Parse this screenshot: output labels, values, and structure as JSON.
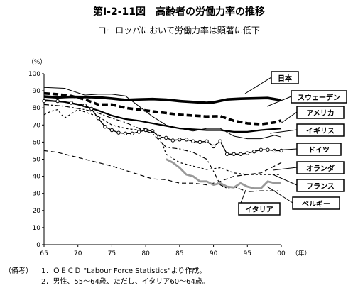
{
  "title": "第Ⅰ-2-11図　高齢者の労働力率の推移",
  "subtitle": "ヨーロッパにおいて労働力率は顕著に低下",
  "notes": {
    "head": "（備考）",
    "line1": "1．ＯＥＣＤ \"Labour Force Statistics\"より作成。",
    "line2": "2．男性、55～64歳、ただし、イタリア60～64歳。"
  },
  "chart_data": {
    "type": "line",
    "ylabel": "（%）",
    "xlabel": "（年）",
    "xlim": [
      1965,
      2000
    ],
    "ylim": [
      0,
      100
    ],
    "x_ticks": [
      "65",
      "70",
      "75",
      "80",
      "85",
      "90",
      "95",
      "00"
    ],
    "y_ticks": [
      "0",
      "10",
      "20",
      "30",
      "40",
      "50",
      "60",
      "70",
      "80",
      "90",
      "100"
    ],
    "grid": false,
    "series": [
      {
        "name": "日本",
        "color": "#000000",
        "style": "thick",
        "points": [
          [
            1965,
            86.7
          ],
          [
            1967,
            86.2
          ],
          [
            1969,
            86.5
          ],
          [
            1971,
            86.4
          ],
          [
            1973,
            86.2
          ],
          [
            1975,
            85.5
          ],
          [
            1977,
            84.7
          ],
          [
            1979,
            85.0
          ],
          [
            1981,
            85.2
          ],
          [
            1983,
            84.8
          ],
          [
            1985,
            84.0
          ],
          [
            1987,
            83.5
          ],
          [
            1989,
            83.0
          ],
          [
            1990,
            83.3
          ],
          [
            1992,
            85.0
          ],
          [
            1994,
            85.4
          ],
          [
            1996,
            85.6
          ],
          [
            1998,
            85.8
          ],
          [
            2000,
            84.5
          ]
        ]
      },
      {
        "name": "スウェーデン",
        "color": "#000000",
        "style": "thickdash",
        "points": [
          [
            1965,
            88.5
          ],
          [
            1967,
            88.0
          ],
          [
            1969,
            87.0
          ],
          [
            1971,
            85.0
          ],
          [
            1973,
            82.0
          ],
          [
            1975,
            82.0
          ],
          [
            1977,
            80.0
          ],
          [
            1979,
            79.0
          ],
          [
            1981,
            78.0
          ],
          [
            1983,
            77.0
          ],
          [
            1985,
            76.0
          ],
          [
            1987,
            75.5
          ],
          [
            1989,
            75.0
          ],
          [
            1991,
            75.2
          ],
          [
            1993,
            72.5
          ],
          [
            1995,
            71.0
          ],
          [
            1997,
            70.5
          ],
          [
            1999,
            71.5
          ],
          [
            2000,
            72.7
          ]
        ]
      },
      {
        "name": "アメリカ",
        "color": "#000000",
        "style": "medium",
        "points": [
          [
            1965,
            84.5
          ],
          [
            1968,
            83.5
          ],
          [
            1970,
            82.0
          ],
          [
            1973,
            78.5
          ],
          [
            1975,
            75.5
          ],
          [
            1977,
            73.5
          ],
          [
            1979,
            72.5
          ],
          [
            1981,
            71.0
          ],
          [
            1983,
            69.5
          ],
          [
            1985,
            68.0
          ],
          [
            1987,
            67.5
          ],
          [
            1989,
            67.0
          ],
          [
            1991,
            67.0
          ],
          [
            1993,
            66.0
          ],
          [
            1995,
            66.0
          ],
          [
            1997,
            67.0
          ],
          [
            2000,
            68.0
          ]
        ]
      },
      {
        "name": "イギリス",
        "color": "#000000",
        "style": "thin",
        "points": [
          [
            1965,
            92.0
          ],
          [
            1968,
            91.5
          ],
          [
            1971,
            87.5
          ],
          [
            1973,
            88.0
          ],
          [
            1975,
            88.0
          ],
          [
            1977,
            87.0
          ],
          [
            1979,
            81.0
          ],
          [
            1981,
            75.0
          ],
          [
            1983,
            70.0
          ],
          [
            1985,
            68.0
          ],
          [
            1987,
            66.5
          ],
          [
            1989,
            68.0
          ],
          [
            1991,
            68.0
          ],
          [
            1993,
            63.5
          ],
          [
            1995,
            62.0
          ],
          [
            1997,
            62.0
          ],
          [
            1999,
            64.0
          ],
          [
            2000,
            63.0
          ]
        ]
      },
      {
        "name": "ドイツ",
        "color": "#000000",
        "style": "circles",
        "points": [
          [
            1965,
            84.0
          ],
          [
            1967,
            84.0
          ],
          [
            1969,
            83.0
          ],
          [
            1971,
            81.5
          ],
          [
            1972,
            79.5
          ],
          [
            1973,
            74.0
          ],
          [
            1974,
            69.0
          ],
          [
            1975,
            67.0
          ],
          [
            1976,
            65.5
          ],
          [
            1977,
            65.0
          ],
          [
            1978,
            65.0
          ],
          [
            1979,
            66.0
          ],
          [
            1980,
            67.0
          ],
          [
            1981,
            66.5
          ],
          [
            1982,
            63.0
          ],
          [
            1983,
            62.5
          ],
          [
            1984,
            61.0
          ],
          [
            1985,
            61.5
          ],
          [
            1986,
            61.5
          ],
          [
            1987,
            60.5
          ],
          [
            1988,
            60.0
          ],
          [
            1989,
            60.5
          ],
          [
            1990,
            57.5
          ],
          [
            1991,
            60.5
          ],
          [
            1992,
            53.0
          ],
          [
            1993,
            53.0
          ],
          [
            1994,
            53.0
          ],
          [
            1995,
            53.5
          ],
          [
            1996,
            54.5
          ],
          [
            1997,
            55.5
          ],
          [
            1998,
            55.5
          ],
          [
            1999,
            55.0
          ],
          [
            2000,
            55.0
          ]
        ]
      },
      {
        "name": "オランダ",
        "color": "#000000",
        "style": "longdash",
        "points": [
          [
            1965,
            55.0
          ],
          [
            1967,
            54.0
          ],
          [
            1969,
            52.0
          ],
          [
            1971,
            50.0
          ],
          [
            1973,
            48.0
          ],
          [
            1975,
            46.0
          ],
          [
            1977,
            43.5
          ],
          [
            1979,
            41.0
          ],
          [
            1981,
            38.5
          ],
          [
            1983,
            38.0
          ],
          [
            1985,
            36.0
          ],
          [
            1987,
            36.0
          ],
          [
            1989,
            35.0
          ],
          [
            1991,
            37.0
          ],
          [
            1993,
            40.0
          ],
          [
            1995,
            41.0
          ],
          [
            1997,
            42.0
          ],
          [
            1999,
            46.0
          ],
          [
            2000,
            48.0
          ]
        ]
      },
      {
        "name": "フランス",
        "color": "#000000",
        "style": "shortdash",
        "points": [
          [
            1965,
            76.0
          ],
          [
            1966,
            78.0
          ],
          [
            1967,
            79.0
          ],
          [
            1968,
            74.0
          ],
          [
            1970,
            79.0
          ],
          [
            1973,
            75.0
          ],
          [
            1975,
            70.0
          ],
          [
            1977,
            68.0
          ],
          [
            1979,
            67.0
          ],
          [
            1980,
            68.0
          ],
          [
            1982,
            64.0
          ],
          [
            1983,
            53.0
          ],
          [
            1985,
            48.0
          ],
          [
            1987,
            46.0
          ],
          [
            1989,
            44.0
          ],
          [
            1991,
            45.0
          ],
          [
            1993,
            42.0
          ],
          [
            1995,
            41.0
          ],
          [
            1997,
            41.0
          ],
          [
            1999,
            41.0
          ],
          [
            2000,
            41.0
          ]
        ]
      },
      {
        "name": "ベルギー",
        "color": "#000000",
        "style": "dashdot",
        "points": [
          [
            1965,
            82.0
          ],
          [
            1968,
            81.0
          ],
          [
            1971,
            79.0
          ],
          [
            1973,
            77.0
          ],
          [
            1975,
            74.0
          ],
          [
            1977,
            71.5
          ],
          [
            1979,
            68.0
          ],
          [
            1981,
            65.0
          ],
          [
            1983,
            57.0
          ],
          [
            1985,
            56.0
          ],
          [
            1987,
            54.0
          ],
          [
            1989,
            50.0
          ],
          [
            1990,
            43.0
          ],
          [
            1991,
            35.0
          ],
          [
            1992,
            33.0
          ],
          [
            1993,
            34.0
          ],
          [
            1995,
            31.0
          ],
          [
            1997,
            31.5
          ],
          [
            2000,
            31.5
          ]
        ]
      },
      {
        "name": "イタリア",
        "color": "#999999",
        "style": "gray",
        "points": [
          [
            1983,
            50.0
          ],
          [
            1984,
            48.0
          ],
          [
            1985,
            45.0
          ],
          [
            1986,
            41.0
          ],
          [
            1987,
            40.0
          ],
          [
            1988,
            37.0
          ],
          [
            1989,
            37.0
          ],
          [
            1990,
            35.0
          ],
          [
            1991,
            36.0
          ],
          [
            1992,
            34.0
          ],
          [
            1993,
            33.5
          ],
          [
            1994,
            36.0
          ],
          [
            1995,
            34.0
          ],
          [
            1996,
            33.0
          ],
          [
            1997,
            33.0
          ],
          [
            1998,
            37.0
          ],
          [
            1999,
            36.0
          ],
          [
            2000,
            36.0
          ]
        ]
      }
    ]
  }
}
